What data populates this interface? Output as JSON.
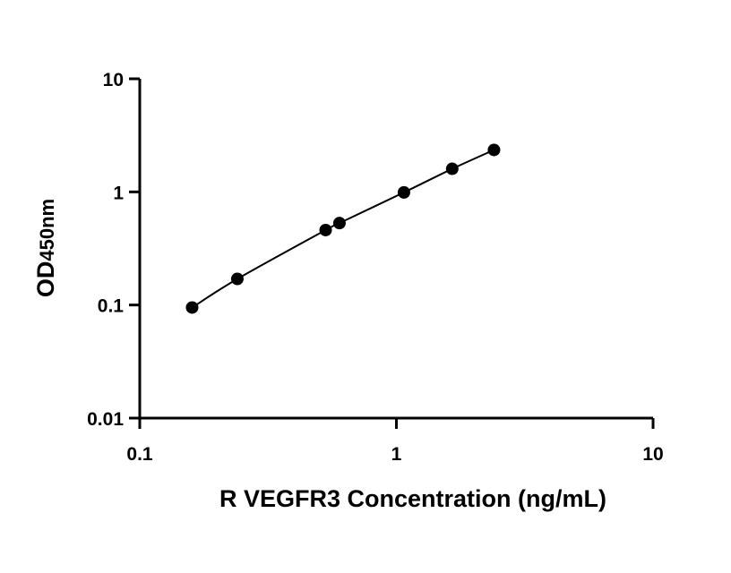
{
  "chart_data": {
    "type": "scatter",
    "xlabel": "R VEGFR3 Concentration (ng/mL)",
    "ylabel": "OD",
    "ylabel_sub": "450nm",
    "x_scale": "log",
    "y_scale": "log",
    "xlim": [
      0.1,
      10
    ],
    "ylim": [
      0.01,
      10
    ],
    "x_ticks": [
      "0.1",
      "1",
      "10"
    ],
    "y_ticks": [
      "0.01",
      "0.1",
      "1",
      "10"
    ],
    "grid": false,
    "legend": "none",
    "points": [
      {
        "x": 0.16,
        "y": 0.095
      },
      {
        "x": 0.24,
        "y": 0.17
      },
      {
        "x": 0.53,
        "y": 0.46
      },
      {
        "x": 0.6,
        "y": 0.53
      },
      {
        "x": 1.07,
        "y": 0.99
      },
      {
        "x": 1.65,
        "y": 1.6
      },
      {
        "x": 2.4,
        "y": 2.35
      }
    ],
    "fit_curve": true,
    "marker_color": "#000000",
    "line_color": "#000000"
  }
}
